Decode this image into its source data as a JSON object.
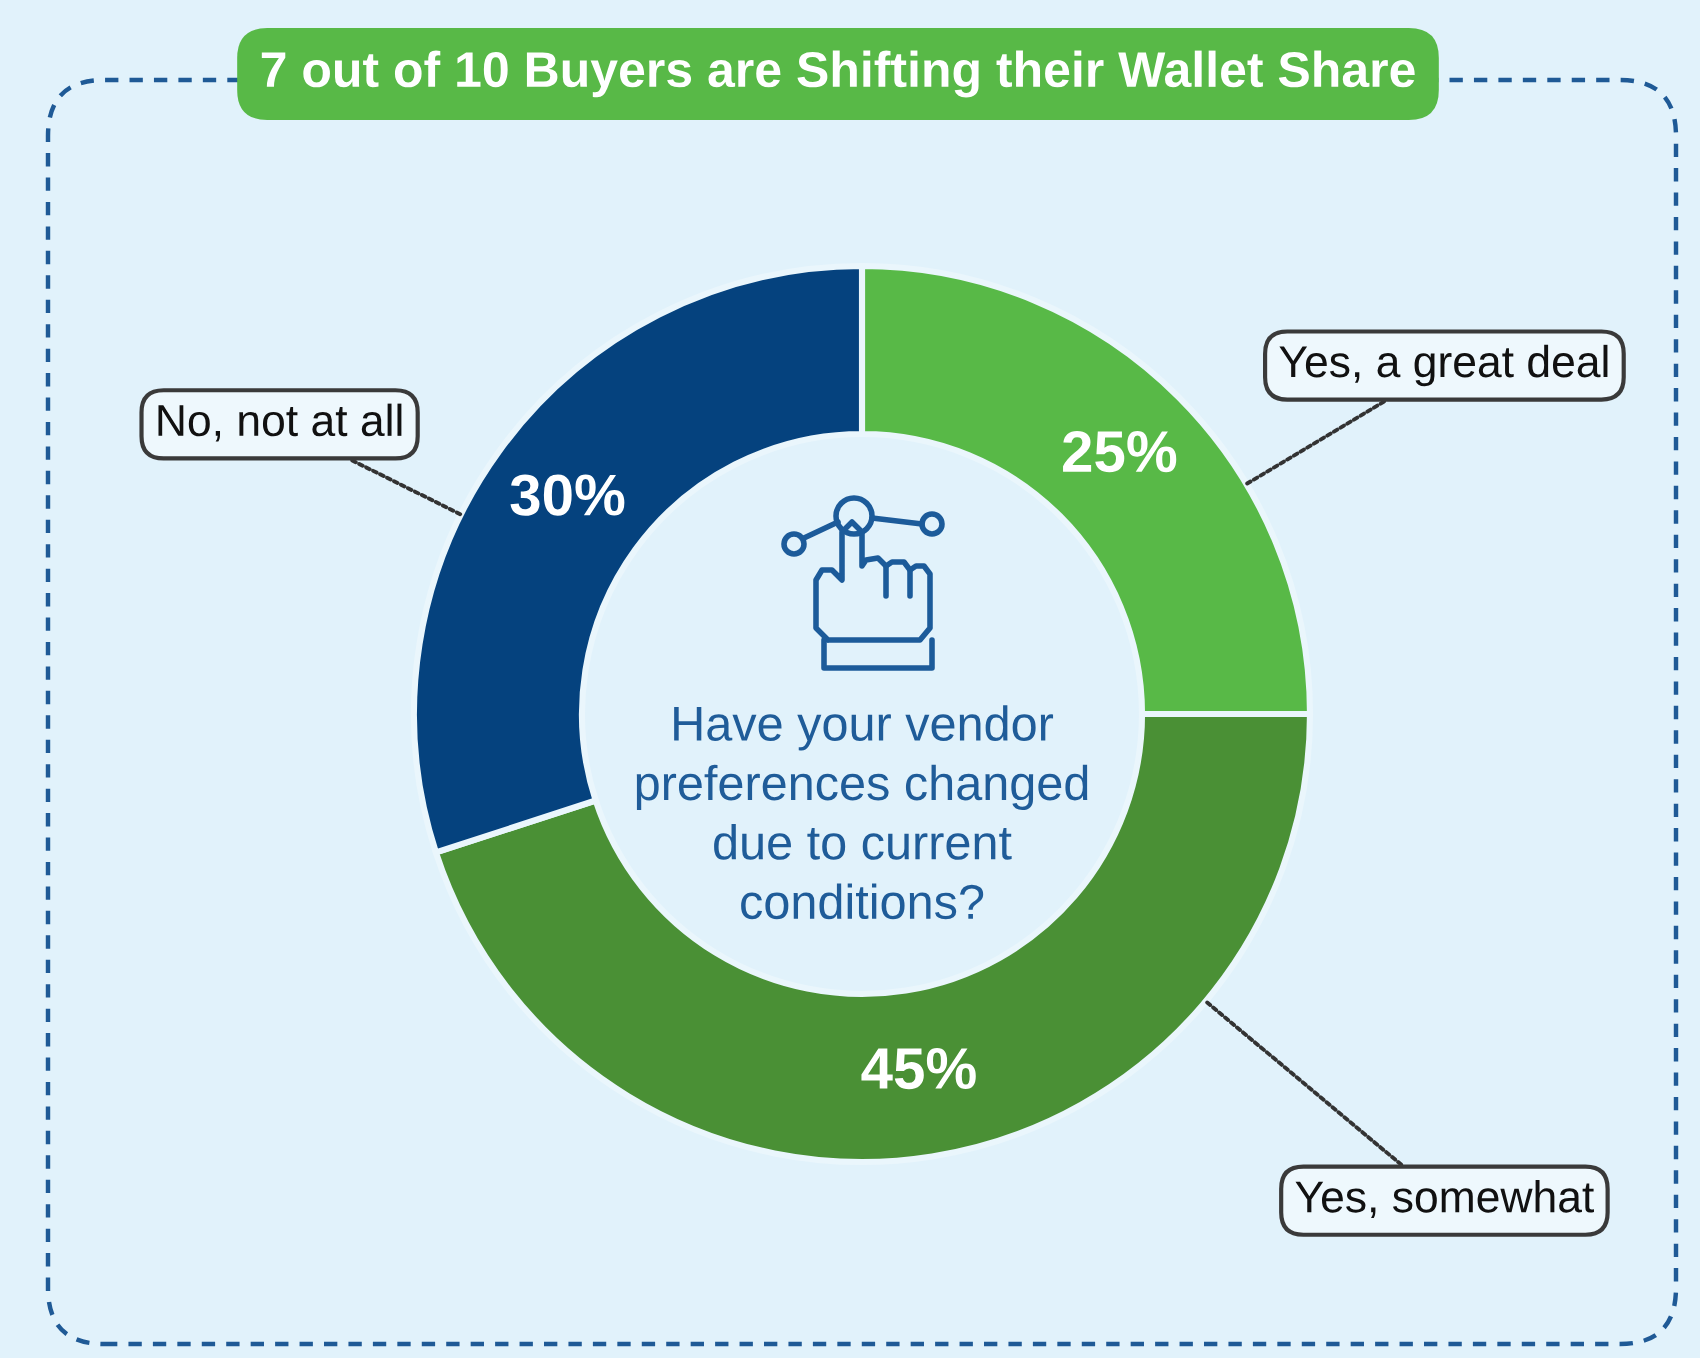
{
  "chart_data": {
    "type": "donut",
    "title": "7 out of 10 Buyers are Shifting their Wallet Share",
    "subtitle": "Have your vendor\npreferences changed\ndue to current\nconditions?",
    "categories": [
      "Yes, a great deal",
      "Yes, somewhat",
      "No, not at all"
    ],
    "values": [
      25,
      45,
      30
    ],
    "colors": [
      "#58b947",
      "#4a9035",
      "#05427e"
    ],
    "value_labels": [
      "25%",
      "45%",
      "30%"
    ]
  }
}
